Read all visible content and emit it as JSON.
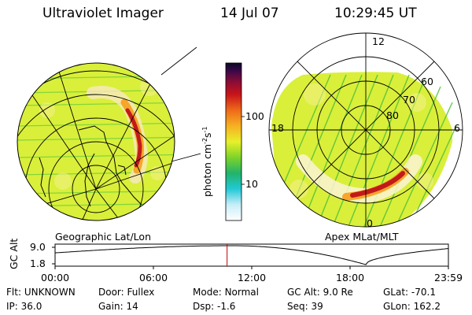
{
  "header": {
    "title": "Ultraviolet Imager",
    "date": "14 Jul 07",
    "time": "10:29:45 UT"
  },
  "colors": {
    "accent_line": "#c00000",
    "land_fill": "#d9ef3a",
    "oval_red": "#c21a1a",
    "halo_orange": "#f7a62a"
  },
  "colorbar": {
    "ticks": [
      "100",
      "10"
    ],
    "label": "photon cm",
    "label_sup1": "-2",
    "label_mid": "s",
    "label_sup2": "-1"
  },
  "left_panel": {
    "caption": "Geographic Lat/Lon"
  },
  "right_panel": {
    "caption": "Apex MLat/MLT",
    "mlt_labels": {
      "top": "12",
      "left": "18",
      "right": "6",
      "bottom": "0"
    },
    "lat_labels": [
      "60",
      "70",
      "80"
    ]
  },
  "altitude": {
    "axis_label": "GC Alt",
    "y_ticks": [
      "9.0",
      "1.8"
    ],
    "x_ticks": [
      "00:00",
      "06:00",
      "12:00",
      "18:00",
      "23:59"
    ],
    "current_time_fraction": 0.4373
  },
  "info": {
    "row1": [
      {
        "label": "Flt:",
        "value": "UNKNOWN"
      },
      {
        "label": "Door:",
        "value": "Fullex"
      },
      {
        "label": "Mode:",
        "value": "Normal"
      },
      {
        "label": "GC Alt:",
        "value": "9.0 Re"
      },
      {
        "label": "GLat:",
        "value": "-70.1"
      }
    ],
    "row2": [
      {
        "label": "IP:",
        "value": "36.0"
      },
      {
        "label": "Gain:",
        "value": "14"
      },
      {
        "label": "Dsp:",
        "value": "-1.6"
      },
      {
        "label": "Seq:",
        "value": "39"
      },
      {
        "label": "GLon:",
        "value": "162.2"
      }
    ]
  }
}
